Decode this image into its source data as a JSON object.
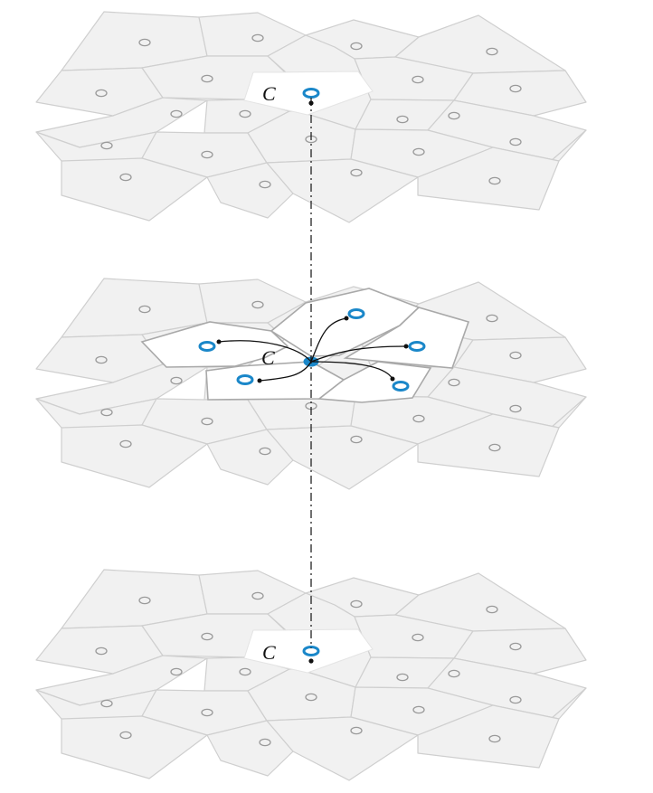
{
  "diagram": {
    "layers": [
      {
        "name": "top-layer",
        "center_label": "C",
        "center_style": "ring"
      },
      {
        "name": "middle-layer",
        "center_label": "C",
        "center_style": "filled",
        "neighbor_count": 5
      },
      {
        "name": "bottom-layer",
        "center_label": "C",
        "center_style": "ring"
      }
    ],
    "colors": {
      "cell_fill": "#f1f1f1",
      "cell_stroke": "#cfcfcf",
      "highlight_fill": "#ffffff",
      "site_ring": "#9a9a9a",
      "accent_blue": "#1a87c9",
      "connector": "#111111"
    },
    "connector_style": "dash-dot vertical axis linking center sites across layers"
  }
}
